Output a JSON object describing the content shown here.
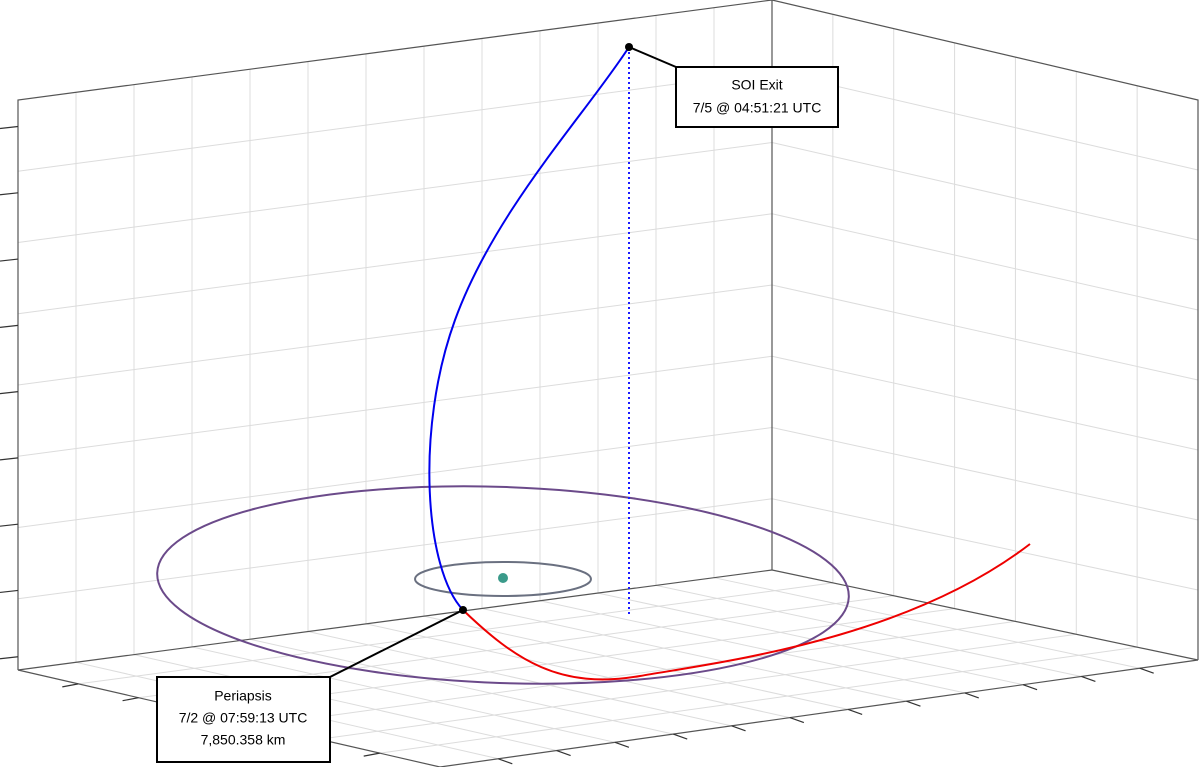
{
  "annotations": [
    {
      "lines": [
        "SOI Exit",
        "7/5 @ 04:51:21 UTC"
      ]
    },
    {
      "lines": [
        "Periapsis",
        "7/2 @ 07:59:13 UTC",
        "7,850.358 km"
      ]
    }
  ]
}
